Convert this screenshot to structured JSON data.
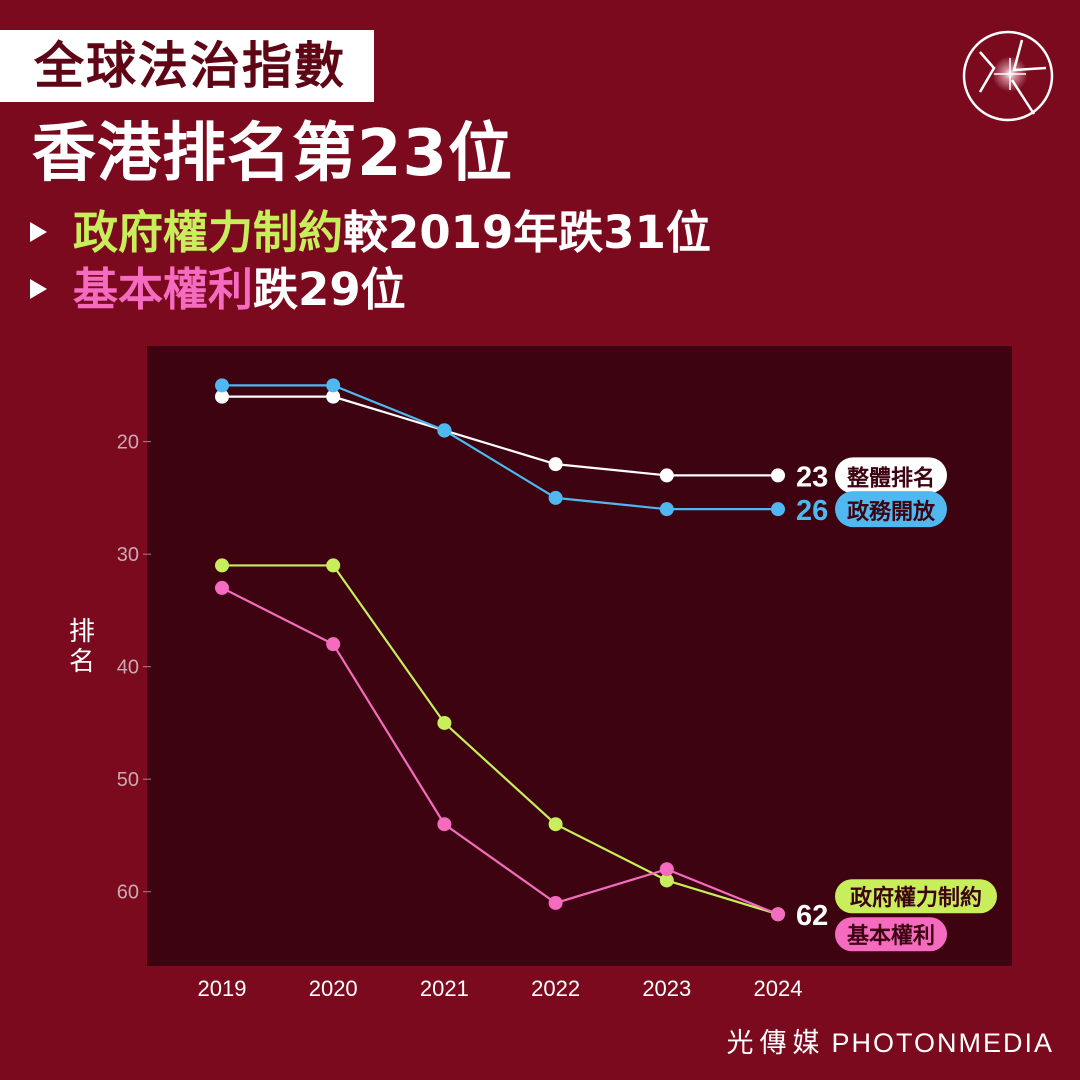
{
  "header": {
    "tag": "全球法治指數",
    "headline": "香港排名第23位",
    "line1": {
      "highlight": "政府權力制約",
      "rest": "較2019年跌31位"
    },
    "line2": {
      "highlight": "基本權利",
      "rest": "跌29位"
    }
  },
  "footer": {
    "brand_cn": "光傳媒",
    "brand_en": "PHOTONMEDIA"
  },
  "colors": {
    "background": "#7b0a1e",
    "plot_bg": "#3d0310",
    "overall": "#ffffff",
    "open_gov": "#4fb8f0",
    "constraints": "#c8ee5c",
    "rights": "#f56bc0"
  },
  "chart_data": {
    "type": "line",
    "ylabel": "排名",
    "y_inverted": true,
    "ylim": [
      11.5,
      66.6
    ],
    "yticks": [
      20,
      30,
      40,
      50,
      60
    ],
    "categories": [
      "2019",
      "2020",
      "2021",
      "2022",
      "2023",
      "2024"
    ],
    "series": [
      {
        "name": "整體排名",
        "key": "overall",
        "values": [
          16,
          16,
          19,
          22,
          23,
          23
        ],
        "end_label": "23"
      },
      {
        "name": "政務開放",
        "key": "open_gov",
        "values": [
          15,
          15,
          19,
          25,
          26,
          26
        ],
        "end_label": "26"
      },
      {
        "name": "政府權力制約",
        "key": "constraints",
        "values": [
          31,
          31,
          45,
          54,
          59,
          62
        ],
        "end_label": "62"
      },
      {
        "name": "基本權利",
        "key": "rights",
        "values": [
          33,
          38,
          54,
          61,
          58,
          62
        ],
        "end_label": "62"
      }
    ]
  }
}
